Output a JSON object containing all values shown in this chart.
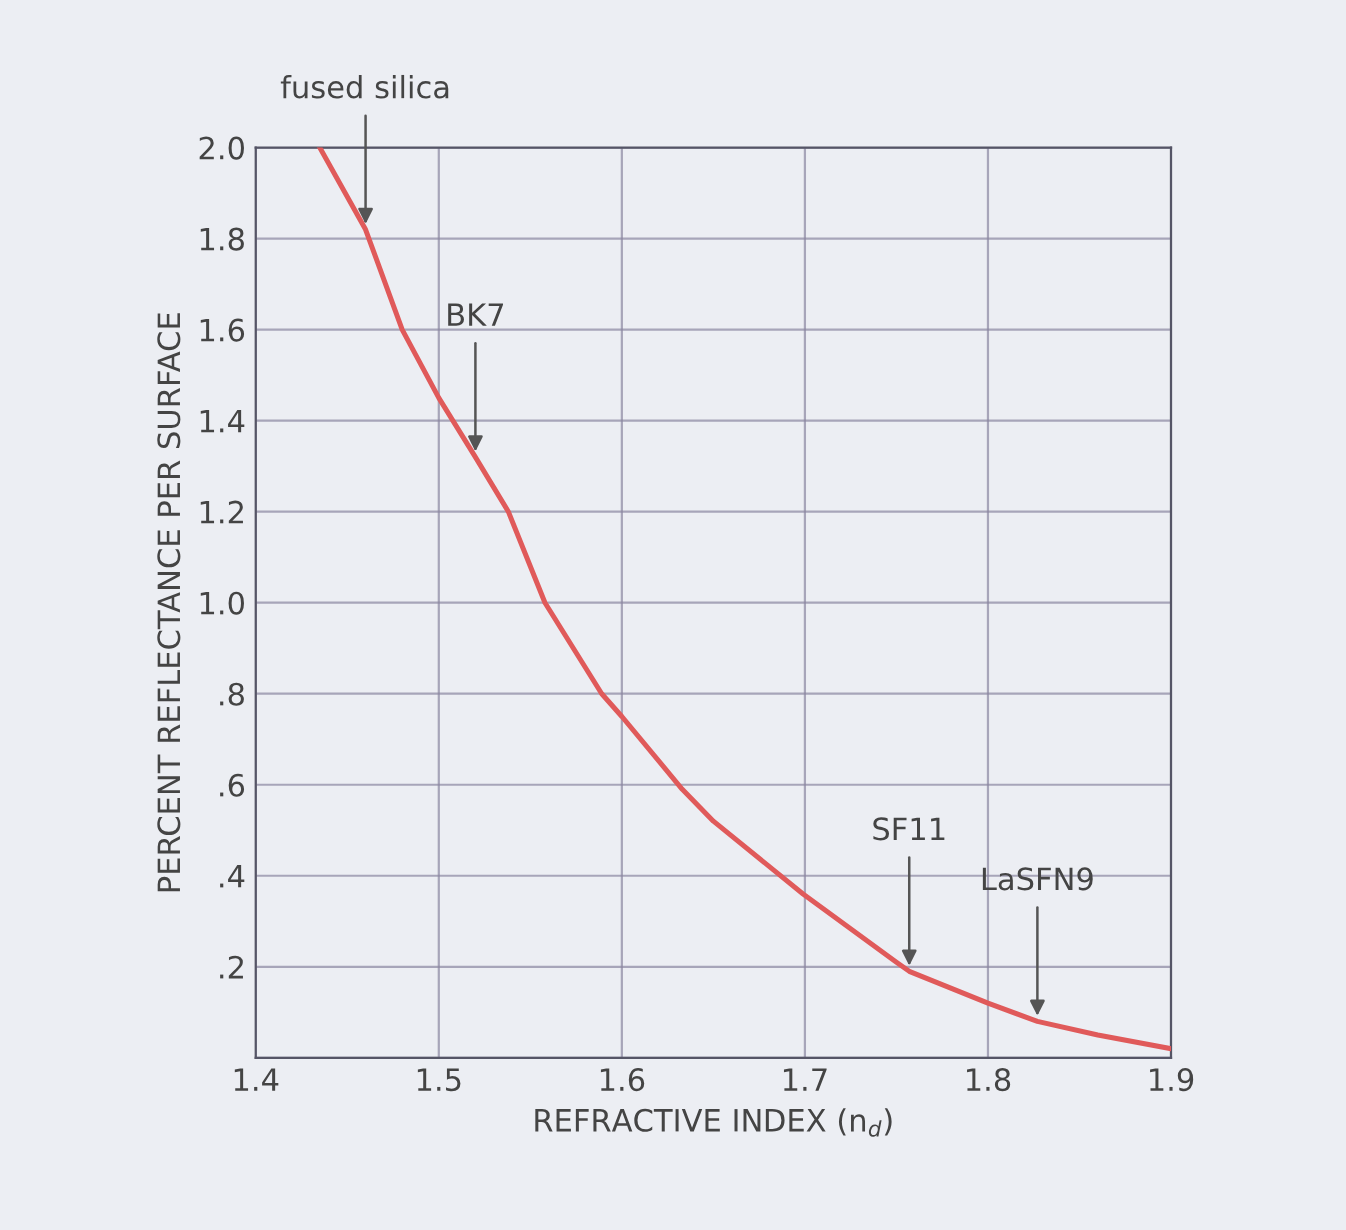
{
  "chart_data": {
    "type": "line",
    "xlabel": "REFRACTIVE INDEX (n$_{d}$)",
    "ylabel": "PERCENT REFLECTANCE PER SURFACE",
    "x": [
      1.435,
      1.46,
      1.48,
      1.5,
      1.52,
      1.538,
      1.558,
      1.589,
      1.6,
      1.633,
      1.65,
      1.699,
      1.75,
      1.757,
      1.8,
      1.827,
      1.86,
      1.9
    ],
    "series": [
      {
        "color": "#e05a5a",
        "values": [
          2.0,
          1.82,
          1.6,
          1.45,
          1.32,
          1.2,
          1.0,
          0.8,
          0.75,
          0.59,
          0.52,
          0.36,
          0.21,
          0.19,
          0.12,
          0.08,
          0.05,
          0.02
        ]
      }
    ],
    "annotations": [
      {
        "text": "fused silica",
        "x": 1.46,
        "y": 1.82
      },
      {
        "text": "BK7",
        "x": 1.52,
        "y": 1.32
      },
      {
        "text": "SF11",
        "x": 1.757,
        "y": 0.19
      },
      {
        "text": "LaSFN9",
        "x": 1.827,
        "y": 0.08
      }
    ],
    "xlim": [
      1.4,
      1.9
    ],
    "xticks": [
      1.4,
      1.5,
      1.6,
      1.7,
      1.8,
      1.9
    ],
    "ylim": [
      0,
      2.0
    ],
    "yticks": [
      {
        "value": 0,
        "label": null
      },
      {
        "value": 0.2,
        "label": ".2"
      },
      {
        "value": 0.4,
        "label": ".4"
      },
      {
        "value": 0.6,
        "label": ".6"
      },
      {
        "value": 0.8,
        "label": ".8"
      },
      {
        "value": 1.0,
        "label": "1.0"
      },
      {
        "value": 1.2,
        "label": "1.2"
      },
      {
        "value": 1.4,
        "label": "1.4"
      },
      {
        "value": 1.6,
        "label": "1.6"
      },
      {
        "value": 1.8,
        "label": "1.8"
      },
      {
        "value": 2.0,
        "label": "2.0"
      }
    ],
    "grid": true,
    "marker": "none",
    "line_style": "solid"
  }
}
